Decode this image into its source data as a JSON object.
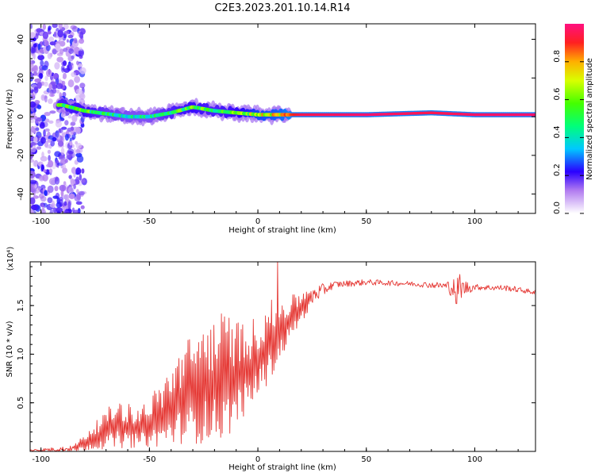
{
  "title": "C2E3.2023.201.10.14.R14",
  "chart_data": [
    {
      "type": "heatmap",
      "xlabel": "Height of straight line (km)",
      "ylabel": "Frequency (Hz)",
      "xlim": [
        -105,
        128
      ],
      "ylim": [
        -50,
        48
      ],
      "xticks": [
        -100,
        -50,
        0,
        50,
        100
      ],
      "yticks": [
        -40,
        -20,
        0,
        20,
        40
      ],
      "colorbar": {
        "label": "Normalized spectral amplitude",
        "range": [
          0,
          1
        ],
        "ticks": [
          0.0,
          0.2,
          0.4,
          0.6,
          0.8
        ],
        "tick_labels": [
          "0.0",
          "0.2",
          "0.4",
          "0.6",
          "0.8"
        ]
      },
      "signal_band": [
        {
          "x": -90,
          "freq": 6,
          "amp": 0.55
        },
        {
          "x": -80,
          "freq": 3,
          "amp": 0.6
        },
        {
          "x": -70,
          "freq": 1.5,
          "amp": 0.5
        },
        {
          "x": -60,
          "freq": 0,
          "amp": 0.45
        },
        {
          "x": -50,
          "freq": 0,
          "amp": 0.45
        },
        {
          "x": -40,
          "freq": 2,
          "amp": 0.55
        },
        {
          "x": -30,
          "freq": 5,
          "amp": 0.6
        },
        {
          "x": -20,
          "freq": 3,
          "amp": 0.55
        },
        {
          "x": -10,
          "freq": 2,
          "amp": 0.6
        },
        {
          "x": 0,
          "freq": 1,
          "amp": 0.75
        },
        {
          "x": 10,
          "freq": 1,
          "amp": 0.8
        },
        {
          "x": 20,
          "freq": 1,
          "amp": 0.95
        },
        {
          "x": 50,
          "freq": 1,
          "amp": 0.98
        },
        {
          "x": 80,
          "freq": 2,
          "amp": 0.95
        },
        {
          "x": 100,
          "freq": 1,
          "amp": 0.97
        },
        {
          "x": 128,
          "freq": 1,
          "amp": 0.98
        }
      ]
    },
    {
      "type": "line",
      "xlabel": "Height of straight line (km)",
      "ylabel": "SNR (10 * v/v)",
      "y_multiplier": "(x10⁴)",
      "xlim": [
        -105,
        128
      ],
      "ylim": [
        0,
        19500
      ],
      "xticks": [
        -100,
        -50,
        0,
        50,
        100
      ],
      "yticks": [
        5000,
        10000,
        15000
      ],
      "ytick_labels": [
        "0.5",
        "1.0",
        "1.5"
      ],
      "color": "#e53935",
      "envelope": [
        {
          "x": -105,
          "lo": 0,
          "hi": 200
        },
        {
          "x": -85,
          "lo": 0,
          "hi": 600
        },
        {
          "x": -75,
          "lo": 200,
          "hi": 3000
        },
        {
          "x": -65,
          "lo": 300,
          "hi": 5500
        },
        {
          "x": -55,
          "lo": 400,
          "hi": 4500
        },
        {
          "x": -45,
          "lo": 500,
          "hi": 7000
        },
        {
          "x": -35,
          "lo": 800,
          "hi": 11000
        },
        {
          "x": -25,
          "lo": 800,
          "hi": 13500
        },
        {
          "x": -15,
          "lo": 1200,
          "hi": 14500
        },
        {
          "x": -5,
          "lo": 4000,
          "hi": 13000
        },
        {
          "x": 5,
          "lo": 7000,
          "hi": 15500
        },
        {
          "x": 15,
          "lo": 11500,
          "hi": 16000
        },
        {
          "x": 25,
          "lo": 15000,
          "hi": 17000
        },
        {
          "x": 35,
          "lo": 16800,
          "hi": 17500
        },
        {
          "x": 50,
          "lo": 17100,
          "hi": 17700
        },
        {
          "x": 70,
          "lo": 17000,
          "hi": 17500
        },
        {
          "x": 85,
          "lo": 16700,
          "hi": 17400
        },
        {
          "x": 92,
          "lo": 15500,
          "hi": 18000
        },
        {
          "x": 100,
          "lo": 16600,
          "hi": 17200
        },
        {
          "x": 115,
          "lo": 16500,
          "hi": 17100
        },
        {
          "x": 128,
          "lo": 16100,
          "hi": 16600
        }
      ]
    }
  ]
}
